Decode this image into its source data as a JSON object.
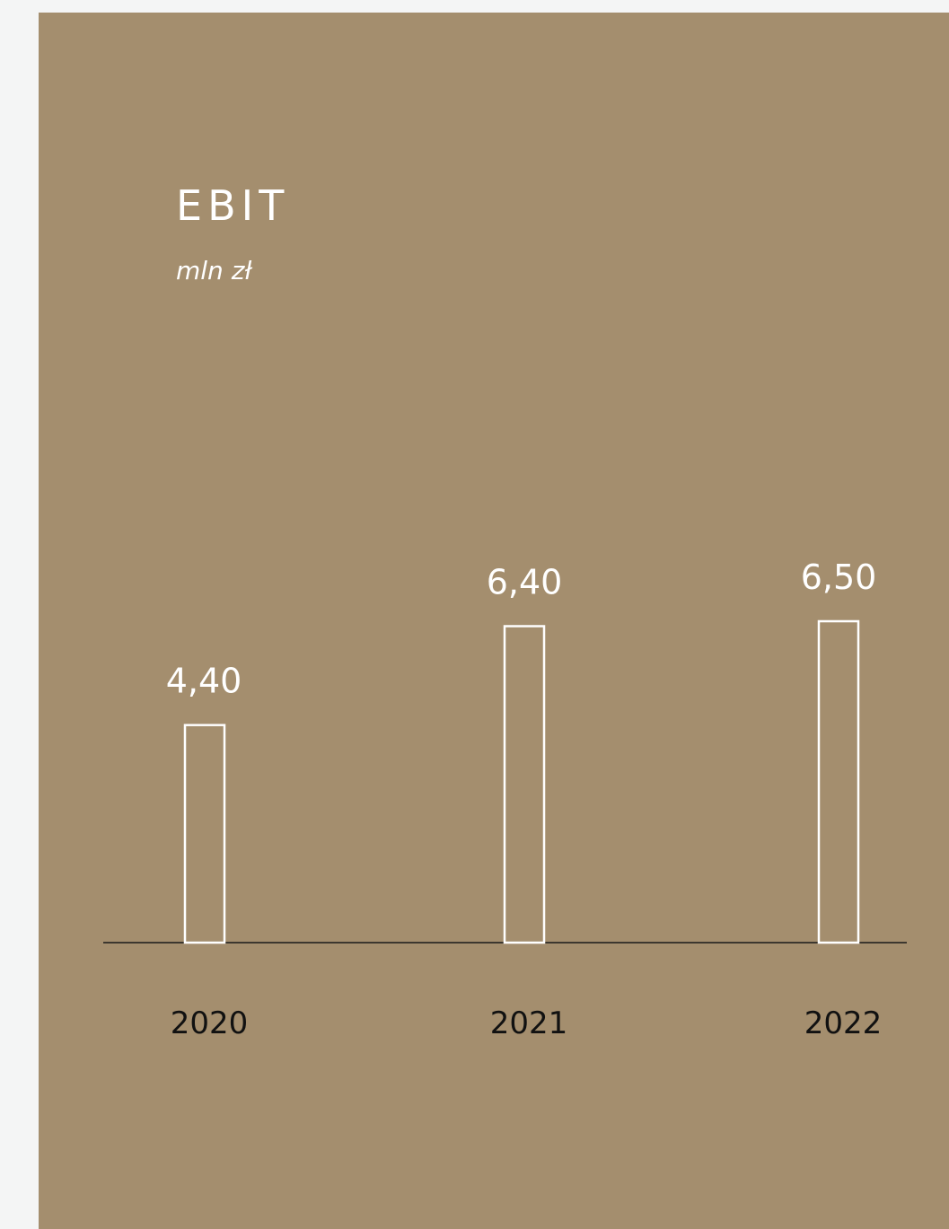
{
  "colors": {
    "page_background": "#f4f5f5",
    "card_background": "#a48e6e",
    "bar_outline": "#ffffff",
    "value_label": "#ffffff",
    "axis_line": "#1a1a1a",
    "category_label": "#111111"
  },
  "chart_data": {
    "type": "bar",
    "title": "EBIT",
    "subtitle": "mln zł",
    "categories": [
      "2020",
      "2021",
      "2022"
    ],
    "values": [
      4.4,
      6.4,
      6.5
    ],
    "value_labels": [
      "4,40",
      "6,40",
      "6,50"
    ],
    "xlabel": "",
    "ylabel": "",
    "ylim": [
      0,
      6.5
    ],
    "grid": false,
    "legend": "none",
    "bar_style": "outline"
  }
}
